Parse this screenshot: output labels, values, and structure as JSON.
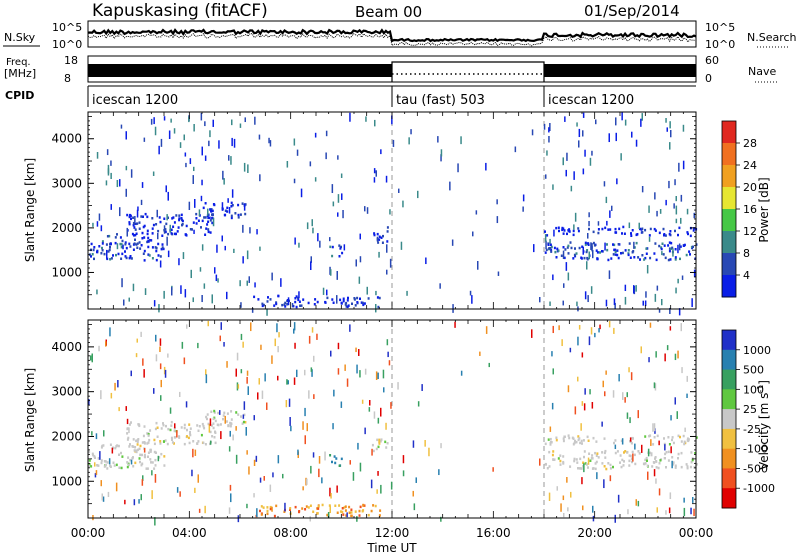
{
  "header": {
    "station": "Kapuskasing (fitACF)",
    "beam": "Beam 00",
    "date": "01/Sep/2014"
  },
  "noise_panel": {
    "left_label": "N.Sky",
    "left_ticks": [
      "10^5",
      "10^0"
    ],
    "right_ticks": [
      "10^5",
      "10^0"
    ],
    "right_label": "N.Search"
  },
  "freq_panel": {
    "left_label_1": "Freq.",
    "left_label_2": "[MHz]",
    "left_ticks": [
      "18",
      "8"
    ],
    "right_ticks": [
      "60",
      "0"
    ],
    "right_label": "Nave"
  },
  "cpid": {
    "label": "CPID",
    "segments": [
      {
        "name": "icescan 1200",
        "start_hour": 0,
        "end_hour": 12
      },
      {
        "name": "tau (fast) 503",
        "start_hour": 12,
        "end_hour": 18
      },
      {
        "name": "icescan 1200",
        "start_hour": 18,
        "end_hour": 24
      }
    ]
  },
  "chart_data": [
    {
      "type": "heatmap",
      "name": "power",
      "ylabel": "Slant Range [km]",
      "xlabel": "",
      "x_range_hours": [
        0,
        24
      ],
      "ylim": [
        180,
        4600
      ],
      "y_ticks": [
        1000,
        2000,
        3000,
        4000
      ],
      "colorbar": {
        "label": "Power [dB]",
        "range": [
          0,
          32
        ],
        "ticks": [
          "4",
          "8",
          "12",
          "16",
          "20",
          "24",
          "28"
        ],
        "colors": [
          "#0a1ee6",
          "#2848b4",
          "#3a8a8a",
          "#46c846",
          "#e6e632",
          "#f0a020",
          "#f07020",
          "#e02820"
        ]
      },
      "bands": [
        {
          "t0": 0,
          "t1": 3.0,
          "r0": 1300,
          "r1": 1700,
          "level": 8
        },
        {
          "t0": 0.5,
          "t1": 2.5,
          "r0": 1650,
          "r1": 1900,
          "level": 8
        },
        {
          "t0": 1.5,
          "t1": 5.0,
          "r0": 1850,
          "r1": 2350,
          "level": 6
        },
        {
          "t0": 4.5,
          "t1": 6.3,
          "r0": 2250,
          "r1": 2600,
          "level": 6
        },
        {
          "t0": 9.5,
          "t1": 10.0,
          "r0": 1350,
          "r1": 1650,
          "level": 10
        },
        {
          "t0": 11.2,
          "t1": 11.8,
          "r0": 1650,
          "r1": 2050,
          "level": 6
        },
        {
          "t0": 6.5,
          "t1": 11.5,
          "r0": 250,
          "r1": 500,
          "level": 6
        },
        {
          "t0": 18.0,
          "t1": 24.0,
          "r0": 1300,
          "r1": 1700,
          "level": 8
        },
        {
          "t0": 18.0,
          "t1": 24.0,
          "r0": 1850,
          "r1": 2050,
          "level": 4
        }
      ]
    },
    {
      "type": "heatmap",
      "name": "velocity",
      "ylabel": "Slant Range [km]",
      "xlabel": "Time UT",
      "x_range_hours": [
        0,
        24
      ],
      "x_ticks": [
        "00:00",
        "04:00",
        "08:00",
        "12:00",
        "16:00",
        "20:00",
        "00:00"
      ],
      "ylim": [
        180,
        4600
      ],
      "y_ticks": [
        1000,
        2000,
        3000,
        4000
      ],
      "colorbar": {
        "label": "Velocity [m s",
        "ticks": [
          "1000",
          "500",
          "100",
          "25",
          "-25",
          "-100",
          "-500",
          "-1000"
        ],
        "colors": [
          "#2030c8",
          "#2880b0",
          "#38a060",
          "#60c840",
          "#c8c8c8",
          "#f0c040",
          "#f09020",
          "#f05020",
          "#e00000"
        ]
      },
      "bands": [
        {
          "t0": 0,
          "t1": 3.0,
          "r0": 1300,
          "r1": 1700,
          "level": 0
        },
        {
          "t0": 0.5,
          "t1": 2.5,
          "r0": 1650,
          "r1": 1900,
          "level": 0
        },
        {
          "t0": 1.5,
          "t1": 5.0,
          "r0": 1850,
          "r1": 2350,
          "level": 0
        },
        {
          "t0": 4.5,
          "t1": 6.3,
          "r0": 2250,
          "r1": 2600,
          "level": 0
        },
        {
          "t0": 9.5,
          "t1": 10.0,
          "r0": 1350,
          "r1": 1650,
          "level": 200
        },
        {
          "t0": 11.2,
          "t1": 11.8,
          "r0": 1650,
          "r1": 2050,
          "level": 0
        },
        {
          "t0": 6.5,
          "t1": 11.5,
          "r0": 250,
          "r1": 500,
          "level": -100
        },
        {
          "t0": 18.0,
          "t1": 24.0,
          "r0": 1300,
          "r1": 1700,
          "level": 0
        },
        {
          "t0": 18.0,
          "t1": 24.0,
          "r0": 1850,
          "r1": 2050,
          "level": 0
        }
      ]
    }
  ]
}
